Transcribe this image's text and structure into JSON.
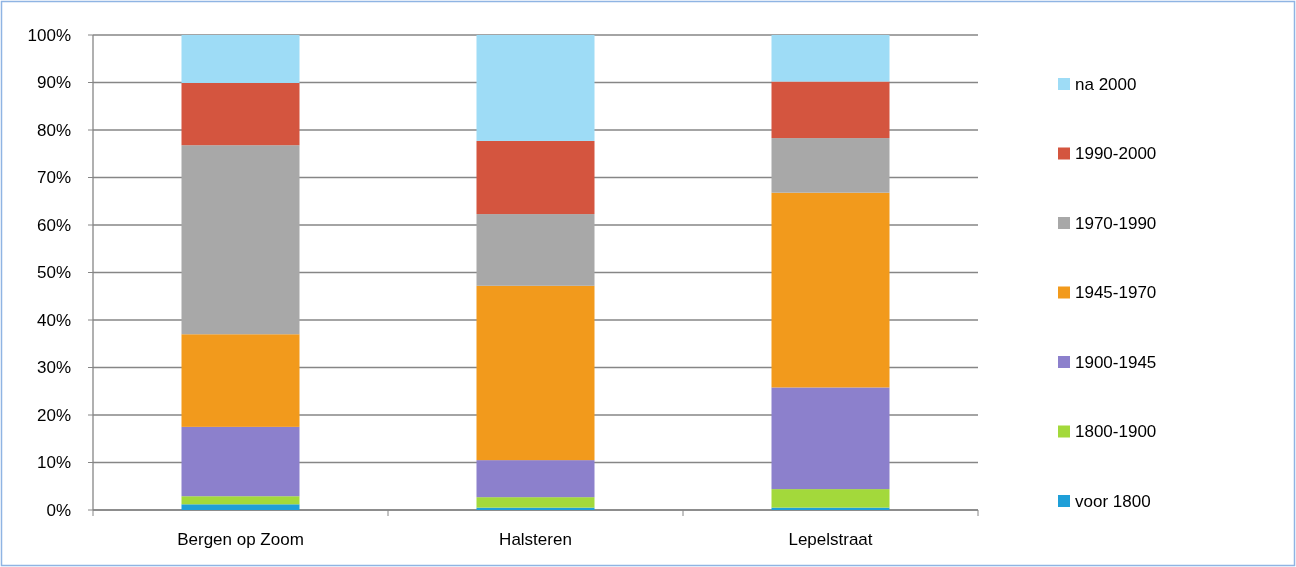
{
  "chart_data": {
    "type": "bar",
    "stacked": true,
    "categories": [
      "Bergen op Zoom",
      "Halsteren",
      "Lepelstraat"
    ],
    "series": [
      {
        "name": "voor 1800",
        "color": "#1f9fd8",
        "values": [
          1.2,
          0.5,
          0.5
        ]
      },
      {
        "name": "1800-1900",
        "color": "#a3d93b",
        "values": [
          1.7,
          2.2,
          3.9
        ]
      },
      {
        "name": "1900-1945",
        "color": "#8c80cc",
        "values": [
          14.6,
          7.8,
          21.4
        ]
      },
      {
        "name": "1945-1970",
        "color": "#f29a1c",
        "values": [
          19.5,
          36.7,
          41
        ]
      },
      {
        "name": "1970-1990",
        "color": "#a8a8a8",
        "values": [
          39.8,
          15.1,
          11.5
        ]
      },
      {
        "name": "1990-2000",
        "color": "#d4553f",
        "values": [
          13.1,
          15.4,
          11.9
        ]
      },
      {
        "name": "na 2000",
        "color": "#9edcf6",
        "values": [
          10.1,
          22.3,
          9.8
        ]
      }
    ],
    "ylim": [
      0,
      100
    ],
    "yticks": [
      {
        "value": 0,
        "label": "0%"
      },
      {
        "value": 10,
        "label": "10%"
      },
      {
        "value": 20,
        "label": "20%"
      },
      {
        "value": 30,
        "label": "30%"
      },
      {
        "value": 40,
        "label": "40%"
      },
      {
        "value": 50,
        "label": "50%"
      },
      {
        "value": 60,
        "label": "60%"
      },
      {
        "value": 70,
        "label": "70%"
      },
      {
        "value": 80,
        "label": "80%"
      },
      {
        "value": 90,
        "label": "90%"
      },
      {
        "value": 100,
        "label": "100%"
      }
    ],
    "grid": "y",
    "legend": "right"
  }
}
